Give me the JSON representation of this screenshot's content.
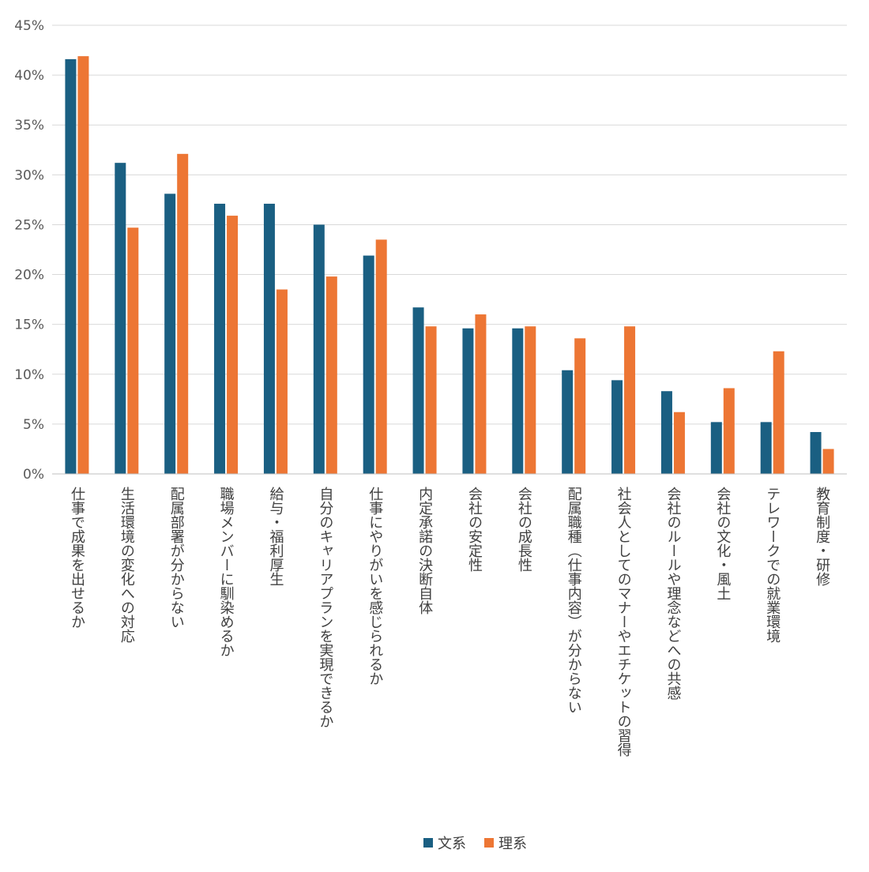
{
  "chart_data": {
    "type": "bar",
    "categories": [
      "仕事で成果を出せるか",
      "生活環境の変化への対応",
      "配属部署が分からない",
      "職場メンバーに馴染めるか",
      "給与・福利厚生",
      "自分のキャリアプランを実現できるか",
      "仕事にやりがいを感じられるか",
      "内定承諾の決断自体",
      "会社の安定性",
      "会社の成長性",
      "配属職種（仕事内容）が分からない",
      "社会人としてのマナーやエチケットの習得",
      "会社のルールや理念などへの共感",
      "会社の文化・風土",
      "テレワークでの就業環境",
      "教育制度・研修"
    ],
    "series": [
      {
        "name": "文系",
        "color": "#1a5f82",
        "values": [
          41.6,
          31.2,
          28.1,
          27.1,
          27.1,
          25.0,
          21.9,
          16.7,
          14.6,
          14.6,
          10.4,
          9.4,
          8.3,
          5.2,
          5.2,
          4.2
        ]
      },
      {
        "name": "理系",
        "color": "#ed7634",
        "values": [
          41.9,
          24.7,
          32.1,
          25.9,
          18.5,
          19.8,
          23.5,
          14.8,
          16.0,
          14.8,
          13.6,
          14.8,
          6.2,
          8.6,
          12.3,
          2.5
        ]
      }
    ],
    "ylim": [
      0,
      45
    ],
    "yticks": [
      "0%",
      "5%",
      "10%",
      "15%",
      "20%",
      "25%",
      "30%",
      "35%",
      "40%",
      "45%"
    ],
    "ytick_values": [
      0,
      5,
      10,
      15,
      20,
      25,
      30,
      35,
      40,
      45
    ],
    "grid": true,
    "legend_position": "bottom",
    "title": "",
    "xlabel": "",
    "ylabel": ""
  }
}
